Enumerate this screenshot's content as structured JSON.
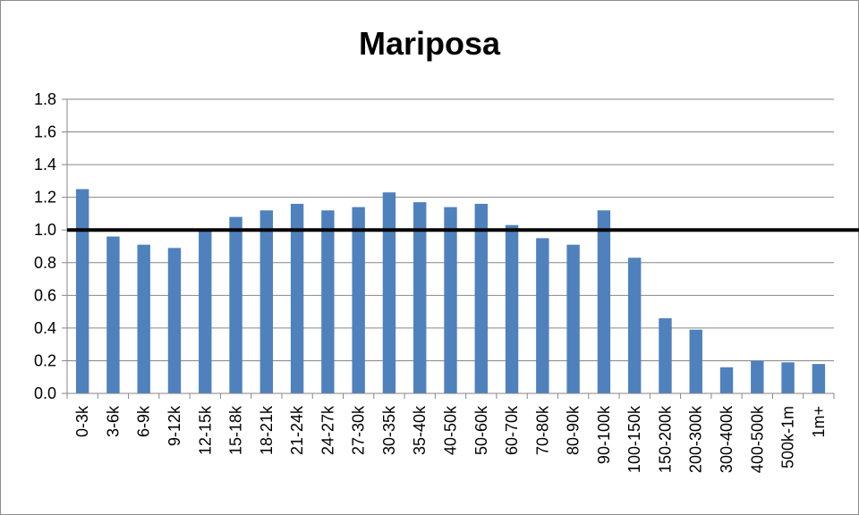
{
  "colors": {
    "bar": "#4f81bd",
    "grid": "#868686",
    "reference_line": "#000000",
    "axis": "#868686"
  },
  "chart_data": {
    "type": "bar",
    "title": "Mariposa",
    "xlabel": "",
    "ylabel": "",
    "ylim": [
      0,
      1.8
    ],
    "yticks": [
      "0.0",
      "0.2",
      "0.4",
      "0.6",
      "0.8",
      "1.0",
      "1.2",
      "1.4",
      "1.6",
      "1.8"
    ],
    "grid": true,
    "legend": "none",
    "reference_line": 1.0,
    "categories": [
      "0-3k",
      "3-6k",
      "6-9k",
      "9-12k",
      "12-15k",
      "15-18k",
      "18-21k",
      "21-24k",
      "24-27k",
      "27-30k",
      "30-35k",
      "35-40k",
      "40-50k",
      "50-60k",
      "60-70k",
      "70-80k",
      "80-90k",
      "90-100k",
      "100-150k",
      "150-200k",
      "200-300k",
      "300-400k",
      "400-500k",
      "500k-1m",
      "1m+"
    ],
    "values": [
      1.25,
      0.96,
      0.91,
      0.89,
      1.0,
      1.08,
      1.12,
      1.16,
      1.12,
      1.14,
      1.23,
      1.17,
      1.14,
      1.16,
      1.03,
      0.95,
      0.91,
      1.12,
      0.83,
      0.46,
      0.39,
      0.16,
      0.2,
      0.19,
      0.18
    ]
  }
}
